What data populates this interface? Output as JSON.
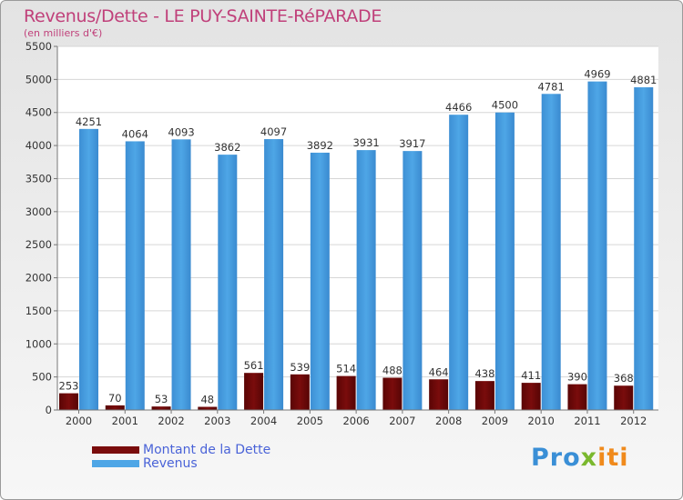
{
  "title": "Revenus/Dette - LE PUY-SAINTE-RéPARADE",
  "subtitle": "(en milliers d'€)",
  "colors": {
    "dette": "#7a0c0c",
    "revenus": "#4ea6e6",
    "title": "#c0407a",
    "legend_text": "#4a63d8"
  },
  "legend": {
    "dette": "Montant de la Dette",
    "revenus": "Revenus"
  },
  "logo": {
    "part1": "Pro",
    "part2": "x",
    "part3": "iti"
  },
  "chart_data": {
    "type": "bar",
    "title": "Revenus/Dette - LE PUY-SAINTE-RéPARADE",
    "subtitle": "(en milliers d'€)",
    "categories": [
      "2000",
      "2001",
      "2002",
      "2003",
      "2004",
      "2005",
      "2006",
      "2007",
      "2008",
      "2009",
      "2010",
      "2011",
      "2012"
    ],
    "series": [
      {
        "name": "Montant de la Dette",
        "values": [
          253,
          70,
          53,
          48,
          561,
          539,
          514,
          488,
          464,
          438,
          411,
          390,
          368
        ]
      },
      {
        "name": "Revenus",
        "values": [
          4251,
          4064,
          4093,
          3862,
          4097,
          3892,
          3931,
          3917,
          4466,
          4500,
          4781,
          4969,
          4881
        ]
      }
    ],
    "ylim": [
      0,
      5500
    ],
    "yticks": [
      0,
      500,
      1000,
      1500,
      2000,
      2500,
      3000,
      3500,
      4000,
      4500,
      5000,
      5500
    ],
    "grid": true,
    "legend_position": "bottom-left"
  }
}
